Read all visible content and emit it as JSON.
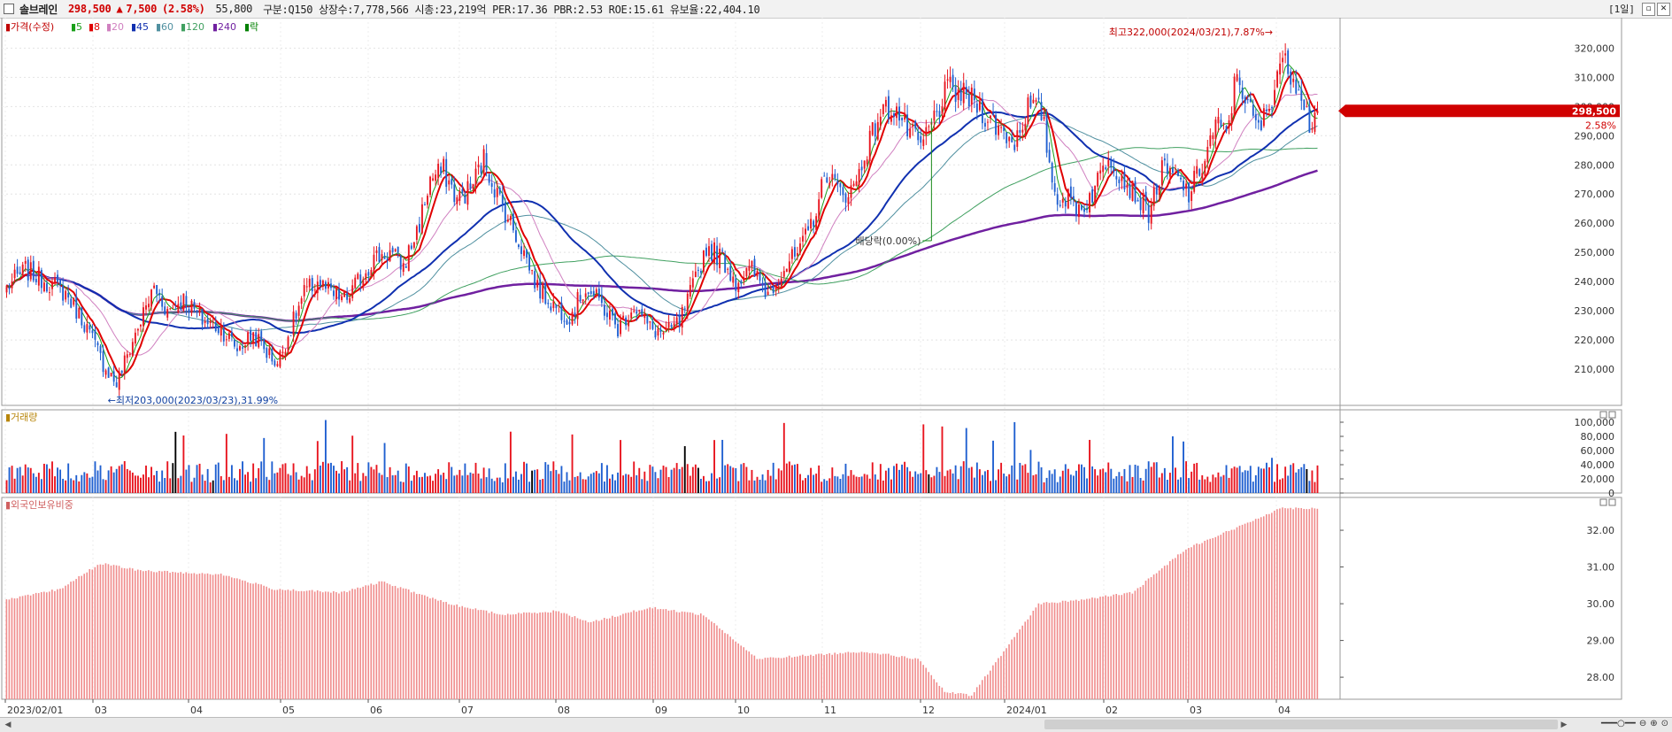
{
  "header": {
    "stock_name": "솔브레인",
    "price": "298,500",
    "change_arrow": "▲",
    "change": "7,500",
    "change_pct": "(2.58%)",
    "extra": "55,800",
    "info": "구분:Q150 상장수:7,778,566 시총:23,219억 PER:17.36 PBR:2.53 ROE:15.61 유보율:22,404.10",
    "period": "[1일]"
  },
  "legend": {
    "price_label": "가격(수정)",
    "ma": [
      {
        "label": "5",
        "color": "#1aa01a"
      },
      {
        "label": "8",
        "color": "#e00000"
      },
      {
        "label": "20",
        "color": "#d080c0"
      },
      {
        "label": "45",
        "color": "#1030b0"
      },
      {
        "label": "60",
        "color": "#5090a0"
      },
      {
        "label": "120",
        "color": "#40a060"
      },
      {
        "label": "240",
        "color": "#7020a0"
      },
      {
        "label": "락",
        "color": "#008000"
      }
    ]
  },
  "annotations": {
    "high": "최고322,000(2024/03/21),7.87%→",
    "low": "←최저203,000(2023/03/23),31.99%",
    "dividend": "배당락(0.00%)"
  },
  "current_price_tag": {
    "price": "298,500",
    "pct": "2.58%"
  },
  "volume_panel": {
    "title": "거래량"
  },
  "foreign_panel": {
    "title": "외국인보유비중"
  },
  "colors": {
    "up": "#e8141e",
    "down": "#1f5fd0",
    "flat": "#000000",
    "foreign": "#f08c8c"
  },
  "chart_data": [
    {
      "type": "candlestick",
      "title": "",
      "x_ticks": [
        "2023/02/01",
        "03",
        "04",
        "05",
        "06",
        "07",
        "08",
        "09",
        "10",
        "11",
        "12",
        "2024/01",
        "02",
        "03",
        "04"
      ],
      "y_ticks": [
        "210,000",
        "220,000",
        "230,000",
        "240,000",
        "250,000",
        "260,000",
        "270,000",
        "280,000",
        "290,000",
        "300,000",
        "310,000",
        "320,000"
      ],
      "ylim": [
        200000,
        328000
      ],
      "anchors_close": [
        [
          0,
          238000
        ],
        [
          7,
          244000
        ],
        [
          15,
          240000
        ],
        [
          22,
          236000
        ],
        [
          29,
          226000
        ],
        [
          36,
          212000
        ],
        [
          41,
          205000
        ],
        [
          48,
          222000
        ],
        [
          55,
          238000
        ],
        [
          60,
          230000
        ],
        [
          66,
          234000
        ],
        [
          73,
          227000
        ],
        [
          80,
          224000
        ],
        [
          86,
          217000
        ],
        [
          92,
          222000
        ],
        [
          97,
          216000
        ],
        [
          101,
          212000
        ],
        [
          106,
          224000
        ],
        [
          111,
          236000
        ],
        [
          116,
          240000
        ],
        [
          122,
          235000
        ],
        [
          127,
          234000
        ],
        [
          131,
          240000
        ],
        [
          137,
          248000
        ],
        [
          143,
          250000
        ],
        [
          148,
          245000
        ],
        [
          154,
          260000
        ],
        [
          158,
          275000
        ],
        [
          163,
          278000
        ],
        [
          168,
          268000
        ],
        [
          173,
          272000
        ],
        [
          178,
          282000
        ],
        [
          183,
          270000
        ],
        [
          188,
          260000
        ],
        [
          193,
          250000
        ],
        [
          198,
          238000
        ],
        [
          204,
          232000
        ],
        [
          210,
          228000
        ],
        [
          216,
          238000
        ],
        [
          222,
          232000
        ],
        [
          228,
          224000
        ],
        [
          234,
          232000
        ],
        [
          240,
          224000
        ],
        [
          246,
          222000
        ],
        [
          251,
          226000
        ],
        [
          256,
          238000
        ],
        [
          261,
          252000
        ],
        [
          267,
          248000
        ],
        [
          272,
          240000
        ],
        [
          278,
          244000
        ],
        [
          284,
          236000
        ],
        [
          290,
          245000
        ],
        [
          296,
          250000
        ],
        [
          301,
          262000
        ],
        [
          306,
          278000
        ],
        [
          311,
          270000
        ],
        [
          316,
          272000
        ],
        [
          321,
          286000
        ],
        [
          326,
          298000
        ],
        [
          331,
          300000
        ],
        [
          336,
          292000
        ],
        [
          341,
          286000
        ],
        [
          346,
          296000
        ],
        [
          351,
          306000
        ],
        [
          356,
          304000
        ],
        [
          361,
          302000
        ],
        [
          366,
          296000
        ],
        [
          371,
          292000
        ],
        [
          376,
          288000
        ],
        [
          381,
          300000
        ],
        [
          386,
          298000
        ],
        [
          391,
          270000
        ],
        [
          396,
          268000
        ],
        [
          401,
          265000
        ],
        [
          406,
          272000
        ],
        [
          411,
          284000
        ],
        [
          416,
          276000
        ],
        [
          421,
          270000
        ],
        [
          426,
          264000
        ],
        [
          431,
          278000
        ],
        [
          436,
          276000
        ],
        [
          441,
          270000
        ],
        [
          446,
          280000
        ],
        [
          451,
          294000
        ],
        [
          455,
          290000
        ],
        [
          459,
          312000
        ],
        [
          463,
          300000
        ],
        [
          467,
          292000
        ],
        [
          471,
          300000
        ],
        [
          475,
          316000
        ],
        [
          479,
          312000
        ],
        [
          483,
          306000
        ],
        [
          486,
          294000
        ],
        [
          489,
          298500
        ]
      ],
      "ma_periods": [
        5,
        8,
        20,
        45,
        60,
        120,
        240
      ],
      "highlight_high": {
        "date": "2024/03/21",
        "value": 322000
      },
      "highlight_low": {
        "date": "2023/03/23",
        "value": 203000
      }
    },
    {
      "type": "bar",
      "title": "거래량",
      "y_ticks": [
        "0",
        "20,000",
        "40,000",
        "60,000",
        "80,000",
        "100,000"
      ],
      "ylim": [
        0,
        110000
      ]
    },
    {
      "type": "bar",
      "title": "외국인보유비중",
      "y_ticks": [
        "28.00",
        "29.00",
        "30.00",
        "31.00",
        "32.00"
      ],
      "ylim": [
        27.4,
        32.7
      ],
      "anchors": [
        [
          0,
          30.1
        ],
        [
          20,
          30.4
        ],
        [
          35,
          31.1
        ],
        [
          50,
          30.9
        ],
        [
          80,
          30.8
        ],
        [
          100,
          30.4
        ],
        [
          125,
          30.3
        ],
        [
          140,
          30.6
        ],
        [
          165,
          30.0
        ],
        [
          185,
          29.7
        ],
        [
          205,
          29.8
        ],
        [
          218,
          29.5
        ],
        [
          240,
          29.9
        ],
        [
          260,
          29.7
        ],
        [
          280,
          28.5
        ],
        [
          300,
          28.6
        ],
        [
          320,
          28.7
        ],
        [
          340,
          28.5
        ],
        [
          350,
          27.6
        ],
        [
          360,
          27.5
        ],
        [
          370,
          28.5
        ],
        [
          385,
          30.0
        ],
        [
          400,
          30.1
        ],
        [
          420,
          30.3
        ],
        [
          440,
          31.5
        ],
        [
          460,
          32.1
        ],
        [
          475,
          32.6
        ],
        [
          489,
          32.6
        ]
      ]
    }
  ]
}
